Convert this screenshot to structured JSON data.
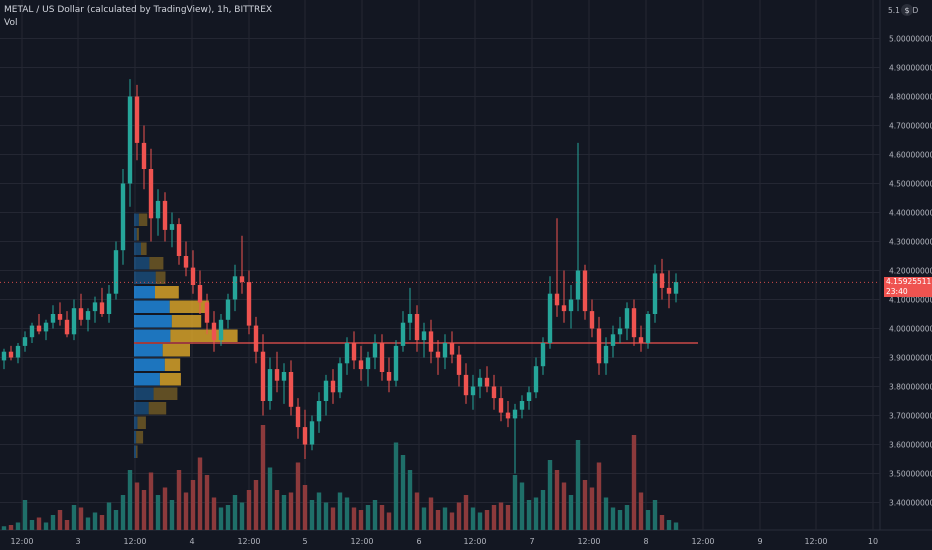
{
  "legend": {
    "symbol_line": "METAL / US Dollar (calculated by TradingView), 1h, BITTREX",
    "indicator": "Vol"
  },
  "price_axis": {
    "top_label": "5.1 USD",
    "currency_icon": "dollar-icon",
    "ticks": [
      "5.00000000",
      "4.90000000",
      "4.80000000",
      "4.70000000",
      "4.60000000",
      "4.50000000",
      "4.40000000",
      "4.30000000",
      "4.20000000",
      "4.10000000",
      "4.00000000",
      "3.90000000",
      "3.80000000",
      "3.70000000",
      "3.60000000",
      "3.50000000",
      "3.40000000"
    ]
  },
  "time_axis": {
    "ticks": [
      "12:00",
      "3",
      "12:00",
      "4",
      "12:00",
      "5",
      "12:00",
      "6",
      "12:00",
      "7",
      "12:00",
      "8",
      "12:00",
      "9",
      "12:00",
      "10"
    ]
  },
  "last_price": {
    "value": "4.15925511",
    "countdown": "23:40"
  },
  "colors": {
    "background": "#131722",
    "grid": "#242733",
    "up": "#26a69a",
    "down": "#ef5350",
    "up_volume": "#1f6f69",
    "down_volume": "#8c3a3c",
    "profile_blue": "#2196f3",
    "profile_yellow": "#f0b429",
    "poc_line": "#ef5350",
    "axis_text": "#b2b5be"
  },
  "chart_data": {
    "type": "candlestick",
    "x_ticks": [
      "12:00",
      "3",
      "12:00",
      "4",
      "12:00",
      "5",
      "12:00",
      "6",
      "12:00",
      "7",
      "12:00",
      "8",
      "12:00",
      "9",
      "12:00",
      "10"
    ],
    "y_range": [
      3.3,
      5.1
    ],
    "point_of_control": 3.95,
    "last_price": 4.15925511,
    "volume_profile": [
      {
        "low": 3.9,
        "high": 3.95,
        "value_area": true,
        "up": 4.1,
        "down": 3.9
      },
      {
        "low": 3.95,
        "high": 4.0,
        "value_area": true,
        "up": 5.2,
        "down": 9.6
      },
      {
        "low": 4.0,
        "high": 4.05,
        "value_area": true,
        "up": 5.4,
        "down": 4.2
      },
      {
        "low": 4.05,
        "high": 4.1,
        "value_area": true,
        "up": 5.1,
        "down": 5.6
      },
      {
        "low": 4.1,
        "high": 4.15,
        "value_area": true,
        "up": 3.0,
        "down": 3.4
      },
      {
        "low": 3.85,
        "high": 3.9,
        "value_area": true,
        "up": 4.4,
        "down": 2.2
      },
      {
        "low": 3.8,
        "high": 3.85,
        "value_area": true,
        "up": 3.7,
        "down": 3.0
      },
      {
        "low": 3.75,
        "high": 3.8,
        "value_area": false,
        "up": 2.8,
        "down": 3.4
      },
      {
        "low": 3.7,
        "high": 3.75,
        "value_area": false,
        "up": 2.1,
        "down": 2.5
      },
      {
        "low": 3.65,
        "high": 3.7,
        "value_area": false,
        "up": 0.5,
        "down": 1.2
      },
      {
        "low": 3.6,
        "high": 3.65,
        "value_area": false,
        "up": 0.3,
        "down": 1.0
      },
      {
        "low": 3.55,
        "high": 3.6,
        "value_area": false,
        "up": 0.3,
        "down": 0.2
      },
      {
        "low": 4.15,
        "high": 4.2,
        "value_area": false,
        "up": 3.1,
        "down": 1.4
      },
      {
        "low": 4.2,
        "high": 4.25,
        "value_area": false,
        "up": 2.2,
        "down": 2.0
      },
      {
        "low": 4.25,
        "high": 4.3,
        "value_area": false,
        "up": 1.0,
        "down": 0.8
      },
      {
        "low": 4.3,
        "high": 4.35,
        "value_area": false,
        "up": 0.4,
        "down": 0.3
      },
      {
        "low": 4.35,
        "high": 4.4,
        "value_area": false,
        "up": 0.7,
        "down": 1.2
      }
    ],
    "candles": [
      {
        "o": 3.89,
        "h": 3.93,
        "l": 3.86,
        "c": 3.92
      },
      {
        "o": 3.92,
        "h": 3.94,
        "l": 3.89,
        "c": 3.9
      },
      {
        "o": 3.9,
        "h": 3.95,
        "l": 3.88,
        "c": 3.94
      },
      {
        "o": 3.94,
        "h": 3.99,
        "l": 3.92,
        "c": 3.97
      },
      {
        "o": 3.97,
        "h": 4.02,
        "l": 3.95,
        "c": 4.01
      },
      {
        "o": 4.01,
        "h": 4.05,
        "l": 3.98,
        "c": 3.99
      },
      {
        "o": 3.99,
        "h": 4.03,
        "l": 3.96,
        "c": 4.02
      },
      {
        "o": 4.02,
        "h": 4.08,
        "l": 4.0,
        "c": 4.05
      },
      {
        "o": 4.05,
        "h": 4.09,
        "l": 4.01,
        "c": 4.03
      },
      {
        "o": 4.03,
        "h": 4.06,
        "l": 3.97,
        "c": 3.98
      },
      {
        "o": 3.98,
        "h": 4.1,
        "l": 3.96,
        "c": 4.07
      },
      {
        "o": 4.07,
        "h": 4.12,
        "l": 4.01,
        "c": 4.03
      },
      {
        "o": 4.03,
        "h": 4.07,
        "l": 3.99,
        "c": 4.06
      },
      {
        "o": 4.06,
        "h": 4.11,
        "l": 4.02,
        "c": 4.09
      },
      {
        "o": 4.09,
        "h": 4.14,
        "l": 4.04,
        "c": 4.05
      },
      {
        "o": 4.05,
        "h": 4.15,
        "l": 4.02,
        "c": 4.12
      },
      {
        "o": 4.12,
        "h": 4.3,
        "l": 4.1,
        "c": 4.27
      },
      {
        "o": 4.27,
        "h": 4.55,
        "l": 4.22,
        "c": 4.5
      },
      {
        "o": 4.5,
        "h": 4.86,
        "l": 4.42,
        "c": 4.8
      },
      {
        "o": 4.8,
        "h": 4.84,
        "l": 4.58,
        "c": 4.64
      },
      {
        "o": 4.64,
        "h": 4.7,
        "l": 4.48,
        "c": 4.55
      },
      {
        "o": 4.55,
        "h": 4.62,
        "l": 4.3,
        "c": 4.38
      },
      {
        "o": 4.38,
        "h": 4.48,
        "l": 4.32,
        "c": 4.44
      },
      {
        "o": 4.44,
        "h": 4.47,
        "l": 4.3,
        "c": 4.34
      },
      {
        "o": 4.34,
        "h": 4.4,
        "l": 4.28,
        "c": 4.36
      },
      {
        "o": 4.36,
        "h": 4.38,
        "l": 4.22,
        "c": 4.25
      },
      {
        "o": 4.25,
        "h": 4.3,
        "l": 4.18,
        "c": 4.21
      },
      {
        "o": 4.21,
        "h": 4.27,
        "l": 4.12,
        "c": 4.15
      },
      {
        "o": 4.15,
        "h": 4.2,
        "l": 4.05,
        "c": 4.09
      },
      {
        "o": 4.09,
        "h": 4.12,
        "l": 3.98,
        "c": 4.02
      },
      {
        "o": 4.02,
        "h": 4.06,
        "l": 3.92,
        "c": 3.96
      },
      {
        "o": 3.96,
        "h": 4.05,
        "l": 3.94,
        "c": 4.03
      },
      {
        "o": 4.03,
        "h": 4.12,
        "l": 4.0,
        "c": 4.1
      },
      {
        "o": 4.1,
        "h": 4.22,
        "l": 4.06,
        "c": 4.18
      },
      {
        "o": 4.18,
        "h": 4.32,
        "l": 4.12,
        "c": 4.16
      },
      {
        "o": 4.16,
        "h": 4.2,
        "l": 3.98,
        "c": 4.01
      },
      {
        "o": 4.01,
        "h": 4.04,
        "l": 3.88,
        "c": 3.92
      },
      {
        "o": 3.92,
        "h": 3.98,
        "l": 3.7,
        "c": 3.75
      },
      {
        "o": 3.75,
        "h": 3.9,
        "l": 3.72,
        "c": 3.86
      },
      {
        "o": 3.86,
        "h": 3.92,
        "l": 3.78,
        "c": 3.82
      },
      {
        "o": 3.82,
        "h": 3.88,
        "l": 3.74,
        "c": 3.85
      },
      {
        "o": 3.85,
        "h": 3.89,
        "l": 3.7,
        "c": 3.73
      },
      {
        "o": 3.73,
        "h": 3.76,
        "l": 3.62,
        "c": 3.66
      },
      {
        "o": 3.66,
        "h": 3.72,
        "l": 3.55,
        "c": 3.6
      },
      {
        "o": 3.6,
        "h": 3.7,
        "l": 3.58,
        "c": 3.68
      },
      {
        "o": 3.68,
        "h": 3.78,
        "l": 3.64,
        "c": 3.75
      },
      {
        "o": 3.75,
        "h": 3.84,
        "l": 3.7,
        "c": 3.82
      },
      {
        "o": 3.82,
        "h": 3.86,
        "l": 3.74,
        "c": 3.78
      },
      {
        "o": 3.78,
        "h": 3.9,
        "l": 3.76,
        "c": 3.88
      },
      {
        "o": 3.88,
        "h": 3.97,
        "l": 3.84,
        "c": 3.95
      },
      {
        "o": 3.95,
        "h": 3.99,
        "l": 3.86,
        "c": 3.89
      },
      {
        "o": 3.89,
        "h": 3.94,
        "l": 3.82,
        "c": 3.86
      },
      {
        "o": 3.86,
        "h": 3.92,
        "l": 3.8,
        "c": 3.9
      },
      {
        "o": 3.9,
        "h": 3.98,
        "l": 3.86,
        "c": 3.95
      },
      {
        "o": 3.95,
        "h": 3.98,
        "l": 3.82,
        "c": 3.85
      },
      {
        "o": 3.85,
        "h": 3.9,
        "l": 3.78,
        "c": 3.82
      },
      {
        "o": 3.82,
        "h": 3.96,
        "l": 3.8,
        "c": 3.94
      },
      {
        "o": 3.94,
        "h": 4.06,
        "l": 3.92,
        "c": 4.02
      },
      {
        "o": 4.02,
        "h": 4.14,
        "l": 3.96,
        "c": 4.05
      },
      {
        "o": 4.05,
        "h": 4.08,
        "l": 3.92,
        "c": 3.96
      },
      {
        "o": 3.96,
        "h": 4.02,
        "l": 3.9,
        "c": 3.99
      },
      {
        "o": 3.99,
        "h": 4.03,
        "l": 3.88,
        "c": 3.92
      },
      {
        "o": 3.92,
        "h": 3.96,
        "l": 3.84,
        "c": 3.9
      },
      {
        "o": 3.9,
        "h": 3.98,
        "l": 3.86,
        "c": 3.95
      },
      {
        "o": 3.95,
        "h": 3.99,
        "l": 3.88,
        "c": 3.91
      },
      {
        "o": 3.91,
        "h": 3.94,
        "l": 3.8,
        "c": 3.84
      },
      {
        "o": 3.84,
        "h": 3.88,
        "l": 3.74,
        "c": 3.77
      },
      {
        "o": 3.77,
        "h": 3.84,
        "l": 3.72,
        "c": 3.8
      },
      {
        "o": 3.8,
        "h": 3.86,
        "l": 3.76,
        "c": 3.83
      },
      {
        "o": 3.83,
        "h": 3.87,
        "l": 3.78,
        "c": 3.8
      },
      {
        "o": 3.8,
        "h": 3.84,
        "l": 3.72,
        "c": 3.76
      },
      {
        "o": 3.76,
        "h": 3.8,
        "l": 3.68,
        "c": 3.71
      },
      {
        "o": 3.71,
        "h": 3.75,
        "l": 3.66,
        "c": 3.69
      },
      {
        "o": 3.69,
        "h": 3.74,
        "l": 3.5,
        "c": 3.72
      },
      {
        "o": 3.72,
        "h": 3.77,
        "l": 3.69,
        "c": 3.75
      },
      {
        "o": 3.75,
        "h": 3.8,
        "l": 3.72,
        "c": 3.78
      },
      {
        "o": 3.78,
        "h": 3.9,
        "l": 3.76,
        "c": 3.87
      },
      {
        "o": 3.87,
        "h": 3.97,
        "l": 3.84,
        "c": 3.95
      },
      {
        "o": 3.95,
        "h": 4.18,
        "l": 3.93,
        "c": 4.12
      },
      {
        "o": 4.12,
        "h": 4.38,
        "l": 4.04,
        "c": 4.08
      },
      {
        "o": 4.08,
        "h": 4.2,
        "l": 4.02,
        "c": 4.06
      },
      {
        "o": 4.06,
        "h": 4.15,
        "l": 4.0,
        "c": 4.1
      },
      {
        "o": 4.1,
        "h": 4.64,
        "l": 4.06,
        "c": 4.2
      },
      {
        "o": 4.2,
        "h": 4.22,
        "l": 4.03,
        "c": 4.06
      },
      {
        "o": 4.06,
        "h": 4.1,
        "l": 3.97,
        "c": 4.0
      },
      {
        "o": 4.0,
        "h": 4.04,
        "l": 3.84,
        "c": 3.88
      },
      {
        "o": 3.88,
        "h": 3.97,
        "l": 3.84,
        "c": 3.94
      },
      {
        "o": 3.94,
        "h": 4.01,
        "l": 3.9,
        "c": 3.98
      },
      {
        "o": 3.98,
        "h": 4.04,
        "l": 3.95,
        "c": 4.0
      },
      {
        "o": 4.0,
        "h": 4.09,
        "l": 3.96,
        "c": 4.07
      },
      {
        "o": 4.07,
        "h": 4.1,
        "l": 3.94,
        "c": 3.97
      },
      {
        "o": 3.97,
        "h": 4.01,
        "l": 3.92,
        "c": 3.95
      },
      {
        "o": 3.95,
        "h": 4.06,
        "l": 3.93,
        "c": 4.05
      },
      {
        "o": 4.05,
        "h": 4.22,
        "l": 4.02,
        "c": 4.19
      },
      {
        "o": 4.19,
        "h": 4.24,
        "l": 4.1,
        "c": 4.14
      },
      {
        "o": 4.14,
        "h": 4.2,
        "l": 4.07,
        "c": 4.12
      },
      {
        "o": 4.12,
        "h": 4.19,
        "l": 4.09,
        "c": 4.16
      }
    ],
    "volumes": [
      {
        "v": 0.15,
        "up": true
      },
      {
        "v": 0.2,
        "up": false
      },
      {
        "v": 0.3,
        "up": true
      },
      {
        "v": 1.2,
        "up": true
      },
      {
        "v": 0.4,
        "up": true
      },
      {
        "v": 0.5,
        "up": false
      },
      {
        "v": 0.3,
        "up": true
      },
      {
        "v": 0.6,
        "up": true
      },
      {
        "v": 0.8,
        "up": false
      },
      {
        "v": 0.4,
        "up": false
      },
      {
        "v": 1.0,
        "up": true
      },
      {
        "v": 0.9,
        "up": false
      },
      {
        "v": 0.5,
        "up": true
      },
      {
        "v": 0.7,
        "up": true
      },
      {
        "v": 0.6,
        "up": false
      },
      {
        "v": 1.1,
        "up": true
      },
      {
        "v": 0.8,
        "up": true
      },
      {
        "v": 1.4,
        "up": true
      },
      {
        "v": 2.4,
        "up": true
      },
      {
        "v": 1.9,
        "up": false
      },
      {
        "v": 1.6,
        "up": false
      },
      {
        "v": 2.3,
        "up": false
      },
      {
        "v": 1.4,
        "up": true
      },
      {
        "v": 1.7,
        "up": false
      },
      {
        "v": 1.2,
        "up": true
      },
      {
        "v": 2.4,
        "up": false
      },
      {
        "v": 1.5,
        "up": false
      },
      {
        "v": 2.0,
        "up": false
      },
      {
        "v": 2.9,
        "up": false
      },
      {
        "v": 2.2,
        "up": false
      },
      {
        "v": 1.3,
        "up": false
      },
      {
        "v": 0.9,
        "up": true
      },
      {
        "v": 1.0,
        "up": true
      },
      {
        "v": 1.4,
        "up": true
      },
      {
        "v": 1.1,
        "up": true
      },
      {
        "v": 1.6,
        "up": false
      },
      {
        "v": 2.0,
        "up": false
      },
      {
        "v": 4.2,
        "up": false
      },
      {
        "v": 2.5,
        "up": true
      },
      {
        "v": 1.6,
        "up": false
      },
      {
        "v": 1.4,
        "up": true
      },
      {
        "v": 1.5,
        "up": false
      },
      {
        "v": 2.7,
        "up": false
      },
      {
        "v": 1.8,
        "up": false
      },
      {
        "v": 1.2,
        "up": true
      },
      {
        "v": 1.5,
        "up": true
      },
      {
        "v": 1.1,
        "up": true
      },
      {
        "v": 0.9,
        "up": false
      },
      {
        "v": 1.5,
        "up": true
      },
      {
        "v": 1.3,
        "up": true
      },
      {
        "v": 0.9,
        "up": false
      },
      {
        "v": 0.8,
        "up": false
      },
      {
        "v": 1.0,
        "up": true
      },
      {
        "v": 1.2,
        "up": true
      },
      {
        "v": 1.0,
        "up": false
      },
      {
        "v": 0.7,
        "up": false
      },
      {
        "v": 3.5,
        "up": true
      },
      {
        "v": 3.0,
        "up": true
      },
      {
        "v": 2.4,
        "up": true
      },
      {
        "v": 1.5,
        "up": false
      },
      {
        "v": 0.9,
        "up": true
      },
      {
        "v": 1.3,
        "up": false
      },
      {
        "v": 0.8,
        "up": false
      },
      {
        "v": 0.9,
        "up": true
      },
      {
        "v": 0.7,
        "up": false
      },
      {
        "v": 1.1,
        "up": false
      },
      {
        "v": 1.4,
        "up": false
      },
      {
        "v": 0.9,
        "up": true
      },
      {
        "v": 0.7,
        "up": true
      },
      {
        "v": 0.8,
        "up": false
      },
      {
        "v": 1.0,
        "up": false
      },
      {
        "v": 1.1,
        "up": false
      },
      {
        "v": 1.0,
        "up": false
      },
      {
        "v": 2.2,
        "up": true
      },
      {
        "v": 1.9,
        "up": true
      },
      {
        "v": 1.2,
        "up": true
      },
      {
        "v": 1.3,
        "up": true
      },
      {
        "v": 1.6,
        "up": true
      },
      {
        "v": 2.8,
        "up": true
      },
      {
        "v": 2.4,
        "up": false
      },
      {
        "v": 1.9,
        "up": false
      },
      {
        "v": 1.4,
        "up": true
      },
      {
        "v": 3.6,
        "up": true
      },
      {
        "v": 2.0,
        "up": false
      },
      {
        "v": 1.7,
        "up": false
      },
      {
        "v": 2.7,
        "up": false
      },
      {
        "v": 1.3,
        "up": true
      },
      {
        "v": 0.9,
        "up": true
      },
      {
        "v": 0.8,
        "up": true
      },
      {
        "v": 1.0,
        "up": true
      },
      {
        "v": 3.8,
        "up": false
      },
      {
        "v": 1.5,
        "up": false
      },
      {
        "v": 0.8,
        "up": true
      },
      {
        "v": 1.2,
        "up": true
      },
      {
        "v": 0.6,
        "up": false
      },
      {
        "v": 0.4,
        "up": true
      },
      {
        "v": 0.3,
        "up": true
      }
    ]
  }
}
